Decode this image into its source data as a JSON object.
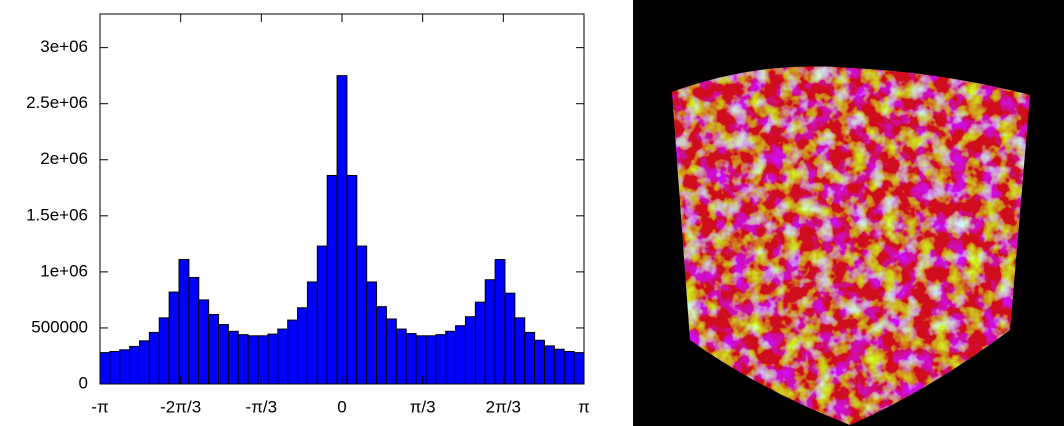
{
  "chart_data": {
    "type": "histogram",
    "bins": [
      -3.1416,
      -3.0134,
      -2.8851,
      -2.7569,
      -2.6287,
      -2.5004,
      -2.3722,
      -2.244,
      -2.1157,
      -1.9875,
      -1.8593,
      -1.731,
      -1.6028,
      -1.4746,
      -1.3464,
      -1.2181,
      -1.0899,
      -0.9617,
      -0.8334,
      -0.7052,
      -0.577,
      -0.4487,
      -0.3205,
      -0.1923,
      -0.0641,
      0.0641,
      0.1923,
      0.3205,
      0.4487,
      0.577,
      0.7052,
      0.8334,
      0.9617,
      1.0899,
      1.2181,
      1.3464,
      1.4746,
      1.6028,
      1.731,
      1.8593,
      1.9875,
      2.1157,
      2.244,
      2.3722,
      2.5004,
      2.6287,
      2.7569,
      2.8851,
      3.0134,
      3.1416
    ],
    "values": [
      280000,
      290000,
      305000,
      335000,
      385000,
      460000,
      590000,
      820000,
      1110000,
      950000,
      750000,
      620000,
      530000,
      470000,
      440000,
      430000,
      430000,
      445000,
      490000,
      570000,
      680000,
      910000,
      1230000,
      1860000,
      2750000,
      1860000,
      1230000,
      910000,
      690000,
      580000,
      490000,
      450000,
      430000,
      430000,
      440000,
      470000,
      520000,
      600000,
      730000,
      930000,
      1110000,
      810000,
      590000,
      460000,
      390000,
      340000,
      310000,
      290000,
      280000
    ],
    "color": "#0000ff",
    "xlim": [
      -3.1416,
      3.1416
    ],
    "xticks": [
      {
        "value": -3.1416,
        "label": "-π"
      },
      {
        "value": -2.0944,
        "label": "-2π/3"
      },
      {
        "value": -1.0472,
        "label": "-π/3"
      },
      0,
      {
        "value": 1.0472,
        "label": "π/3"
      },
      {
        "value": 2.0944,
        "label": "2π/3"
      },
      {
        "value": 3.1416,
        "label": "π"
      }
    ],
    "ylim": [
      0,
      3300000
    ],
    "yticks": [
      0,
      500000,
      {
        "value": 1000000,
        "label": "1e+06"
      },
      {
        "value": 1500000,
        "label": "1.5e+06"
      },
      {
        "value": 2000000,
        "label": "2e+06"
      },
      {
        "value": 2500000,
        "label": "2.5e+06"
      },
      {
        "value": 3000000,
        "label": "3e+06"
      }
    ],
    "grid": false
  }
}
